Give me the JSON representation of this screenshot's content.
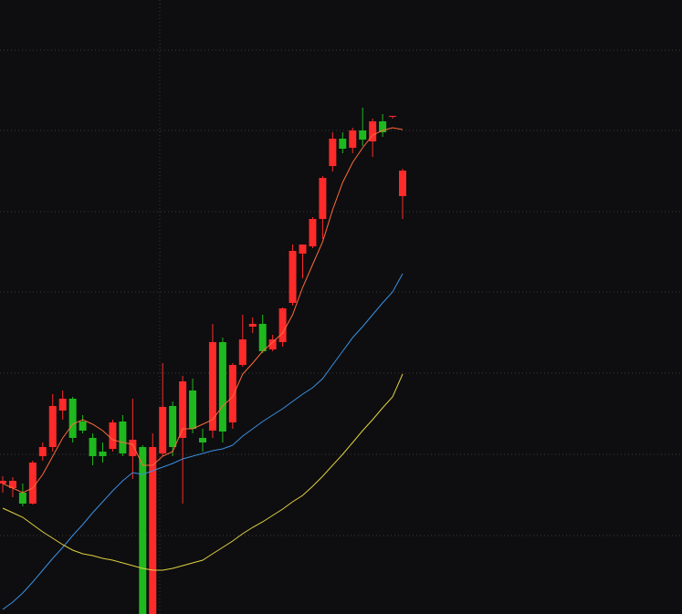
{
  "chart_data": {
    "type": "candlestick",
    "open": [
      143,
      138,
      133,
      121,
      173,
      183,
      223,
      236,
      211,
      193,
      178,
      181,
      211,
      173,
      183,
      0,
      176,
      228,
      193,
      245,
      193,
      201,
      298,
      210,
      273,
      315,
      318,
      290,
      298,
      341,
      395,
      403,
      433,
      491,
      521,
      511,
      530,
      518,
      540,
      545,
      458
    ],
    "high": [
      151,
      150,
      143,
      168,
      188,
      241,
      245,
      238,
      218,
      198,
      188,
      213,
      218,
      236,
      185,
      198,
      275,
      233,
      261,
      258,
      203,
      318,
      303,
      275,
      328,
      325,
      328,
      306,
      336,
      405,
      405,
      435,
      480,
      528,
      528,
      533,
      555,
      543,
      548,
      546,
      488
    ],
    "low": [
      133,
      128,
      118,
      120,
      168,
      178,
      213,
      188,
      198,
      163,
      166,
      178,
      173,
      148,
      0,
      0,
      173,
      173,
      121,
      198,
      178,
      193,
      188,
      203,
      271,
      308,
      286,
      288,
      293,
      338,
      368,
      401,
      411,
      485,
      505,
      505,
      513,
      501,
      523,
      543,
      433
    ],
    "close": [
      146,
      146,
      121,
      166,
      183,
      228,
      236,
      193,
      201,
      173,
      173,
      210,
      176,
      191,
      0,
      183,
      227,
      183,
      255,
      203,
      188,
      298,
      200,
      273,
      301,
      318,
      288,
      301,
      335,
      398,
      405,
      433,
      478,
      521,
      510,
      530,
      520,
      540,
      528,
      546,
      486
    ],
    "up_color": "#ff2a2a",
    "down_color": "#1fb81f",
    "series": [
      {
        "color": "#ff6a3a",
        "values": [
          143,
          138,
          133,
          138,
          153,
          173,
          193,
          208,
          213,
          208,
          201,
          191,
          188,
          186,
          163,
          163,
          173,
          178,
          203,
          203,
          208,
          213,
          228,
          238,
          263,
          275,
          288,
          298,
          308,
          328,
          358,
          383,
          408,
          443,
          473,
          495,
          511,
          525,
          530,
          533,
          531
        ]
      },
      {
        "color": "#3a8fe0",
        "values": [
          5,
          13,
          23,
          35,
          48,
          61,
          73,
          86,
          98,
          111,
          123,
          135,
          146,
          155,
          153,
          157,
          161,
          165,
          170,
          173,
          176,
          179,
          181,
          185,
          195,
          203,
          211,
          218,
          225,
          233,
          241,
          248,
          258,
          273,
          288,
          303,
          315,
          328,
          341,
          353,
          373
        ]
      },
      {
        "color": "#e0d040",
        "values": [
          116,
          111,
          106,
          98,
          90,
          83,
          76,
          70,
          66,
          64,
          61,
          59,
          56,
          53,
          50,
          48,
          48,
          50,
          53,
          56,
          59,
          66,
          73,
          80,
          88,
          95,
          101,
          108,
          115,
          123,
          130,
          140,
          151,
          163,
          175,
          188,
          201,
          213,
          226,
          238,
          263
        ]
      }
    ],
    "ylim": [
      0,
      673
    ],
    "yticks": [
      86,
      175,
      264,
      353,
      441,
      530,
      618
    ],
    "grid": true
  }
}
